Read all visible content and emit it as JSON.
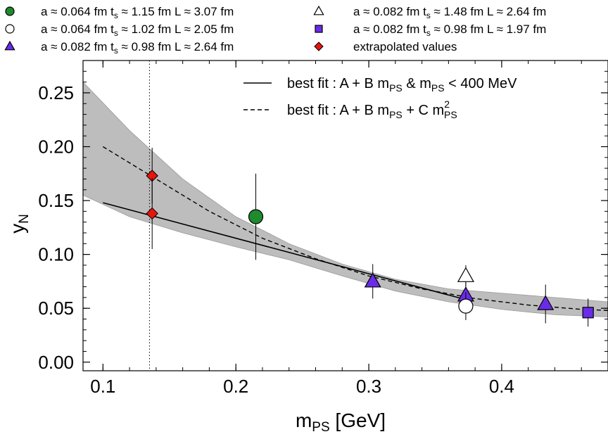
{
  "chart_data": {
    "type": "scatter",
    "xlabel": {
      "main": "m",
      "sub": "PS",
      "rest": "  [GeV]"
    },
    "ylabel": {
      "main": "y",
      "sub": "N"
    },
    "xlim": [
      0.085,
      0.48
    ],
    "ylim": [
      -0.008,
      0.28
    ],
    "xticks": [
      0.1,
      0.2,
      0.3,
      0.4
    ],
    "xtick_labels": [
      "0.1",
      "0.2",
      "0.3",
      "0.4"
    ],
    "yticks": [
      0.0,
      0.05,
      0.1,
      0.15,
      0.2,
      0.25
    ],
    "ytick_labels": [
      "0.00",
      "0.05",
      "0.10",
      "0.15",
      "0.20",
      "0.25"
    ],
    "grid": false,
    "physical_point": 0.135,
    "legend_top": [
      {
        "marker": "circle",
        "fill": "#1f8a2e",
        "text": "a ≈ 0.064 fm  t",
        "ts_sub": "s",
        "text2": " ≈ 1.15 fm  L ≈ 3.07 fm"
      },
      {
        "marker": "triangle",
        "fill": "none",
        "text": "a ≈ 0.082 fm  t",
        "ts_sub": "s",
        "text2": " ≈ 1.48 fm  L ≈ 2.64 fm"
      },
      {
        "marker": "circle",
        "fill": "none",
        "text": "a ≈ 0.064 fm  t",
        "ts_sub": "s",
        "text2": " ≈ 1.02 fm  L ≈ 2.05 fm"
      },
      {
        "marker": "square",
        "fill": "#6a2be8",
        "text": "a ≈ 0.082 fm  t",
        "ts_sub": "s",
        "text2": " ≈ 0.98 fm  L ≈ 1.97 fm"
      },
      {
        "marker": "triangle",
        "fill": "#6a2be8",
        "text": "a ≈ 0.082 fm  t",
        "ts_sub": "s",
        "text2": " ≈ 0.98 fm  L ≈ 2.64 fm"
      },
      {
        "marker": "diamond",
        "fill": "#e8140e",
        "text": "extrapolated values",
        "ts_sub": "",
        "text2": ""
      }
    ],
    "fit_legend": [
      {
        "style": "solid",
        "prefix": "best fit :  A + B m",
        "sub1": "PS",
        "mid": "  & m",
        "sub2": "PS",
        "suffix": " < 400 MeV"
      },
      {
        "style": "dashed",
        "prefix": "best fit :  A + B m",
        "sub1": "PS",
        "mid": " + C m",
        "sub2": "PS",
        "sup": "2"
      }
    ],
    "points": [
      {
        "series": "a ≈ 0.064 fm t_s ≈ 1.15 fm L ≈ 3.07 fm",
        "marker": "circle",
        "fill": "#1f8a2e",
        "x": 0.215,
        "y": 0.135,
        "err": 0.04
      },
      {
        "series": "a ≈ 0.082 fm t_s ≈ 0.98 fm L ≈ 2.64 fm",
        "marker": "triangle",
        "fill": "#6a2be8",
        "x": 0.303,
        "y": 0.075,
        "err": 0.016
      },
      {
        "series": "a ≈ 0.082 fm t_s ≈ 0.98 fm L ≈ 2.64 fm",
        "marker": "triangle",
        "fill": "#6a2be8",
        "x": 0.373,
        "y": 0.062,
        "err": 0.016
      },
      {
        "series": "a ≈ 0.082 fm t_s ≈ 0.98 fm L ≈ 2.64 fm",
        "marker": "triangle",
        "fill": "#6a2be8",
        "x": 0.433,
        "y": 0.054,
        "err": 0.018
      },
      {
        "series": "a ≈ 0.082 fm t_s ≈ 1.48 fm L ≈ 2.64 fm",
        "marker": "triangle",
        "fill": "none",
        "x": 0.373,
        "y": 0.08,
        "err": 0.01
      },
      {
        "series": "a ≈ 0.064 fm t_s ≈ 1.02 fm L ≈ 2.05 fm",
        "marker": "circle",
        "fill": "none",
        "x": 0.373,
        "y": 0.052,
        "err": 0.013
      },
      {
        "series": "a ≈ 0.082 fm t_s ≈ 0.98 fm L ≈ 1.97 fm",
        "marker": "square",
        "fill": "#6a2be8",
        "x": 0.465,
        "y": 0.046,
        "err": 0.013
      },
      {
        "series": "extrapolated values",
        "marker": "diamond",
        "fill": "#e8140e",
        "x": 0.137,
        "y": 0.173,
        "err": 0.026
      },
      {
        "series": "extrapolated values",
        "marker": "diamond",
        "fill": "#e8140e",
        "x": 0.137,
        "y": 0.138,
        "err": 0.033
      }
    ],
    "fit_linear": {
      "x": [
        0.1,
        0.37
      ],
      "y": [
        0.148,
        0.059
      ]
    },
    "fit_quadratic": {
      "x": [
        0.1,
        0.14,
        0.18,
        0.22,
        0.26,
        0.3,
        0.34,
        0.38,
        0.42,
        0.46,
        0.48
      ],
      "y": [
        0.2,
        0.17,
        0.14,
        0.115,
        0.096,
        0.08,
        0.068,
        0.059,
        0.053,
        0.049,
        0.048
      ]
    },
    "band": {
      "x": [
        0.085,
        0.12,
        0.16,
        0.2,
        0.24,
        0.28,
        0.32,
        0.36,
        0.4,
        0.44,
        0.48
      ],
      "upper": [
        0.26,
        0.215,
        0.17,
        0.135,
        0.11,
        0.091,
        0.077,
        0.068,
        0.064,
        0.06,
        0.056
      ],
      "lower": [
        0.155,
        0.135,
        0.12,
        0.107,
        0.095,
        0.08,
        0.066,
        0.056,
        0.049,
        0.044,
        0.042
      ]
    }
  }
}
